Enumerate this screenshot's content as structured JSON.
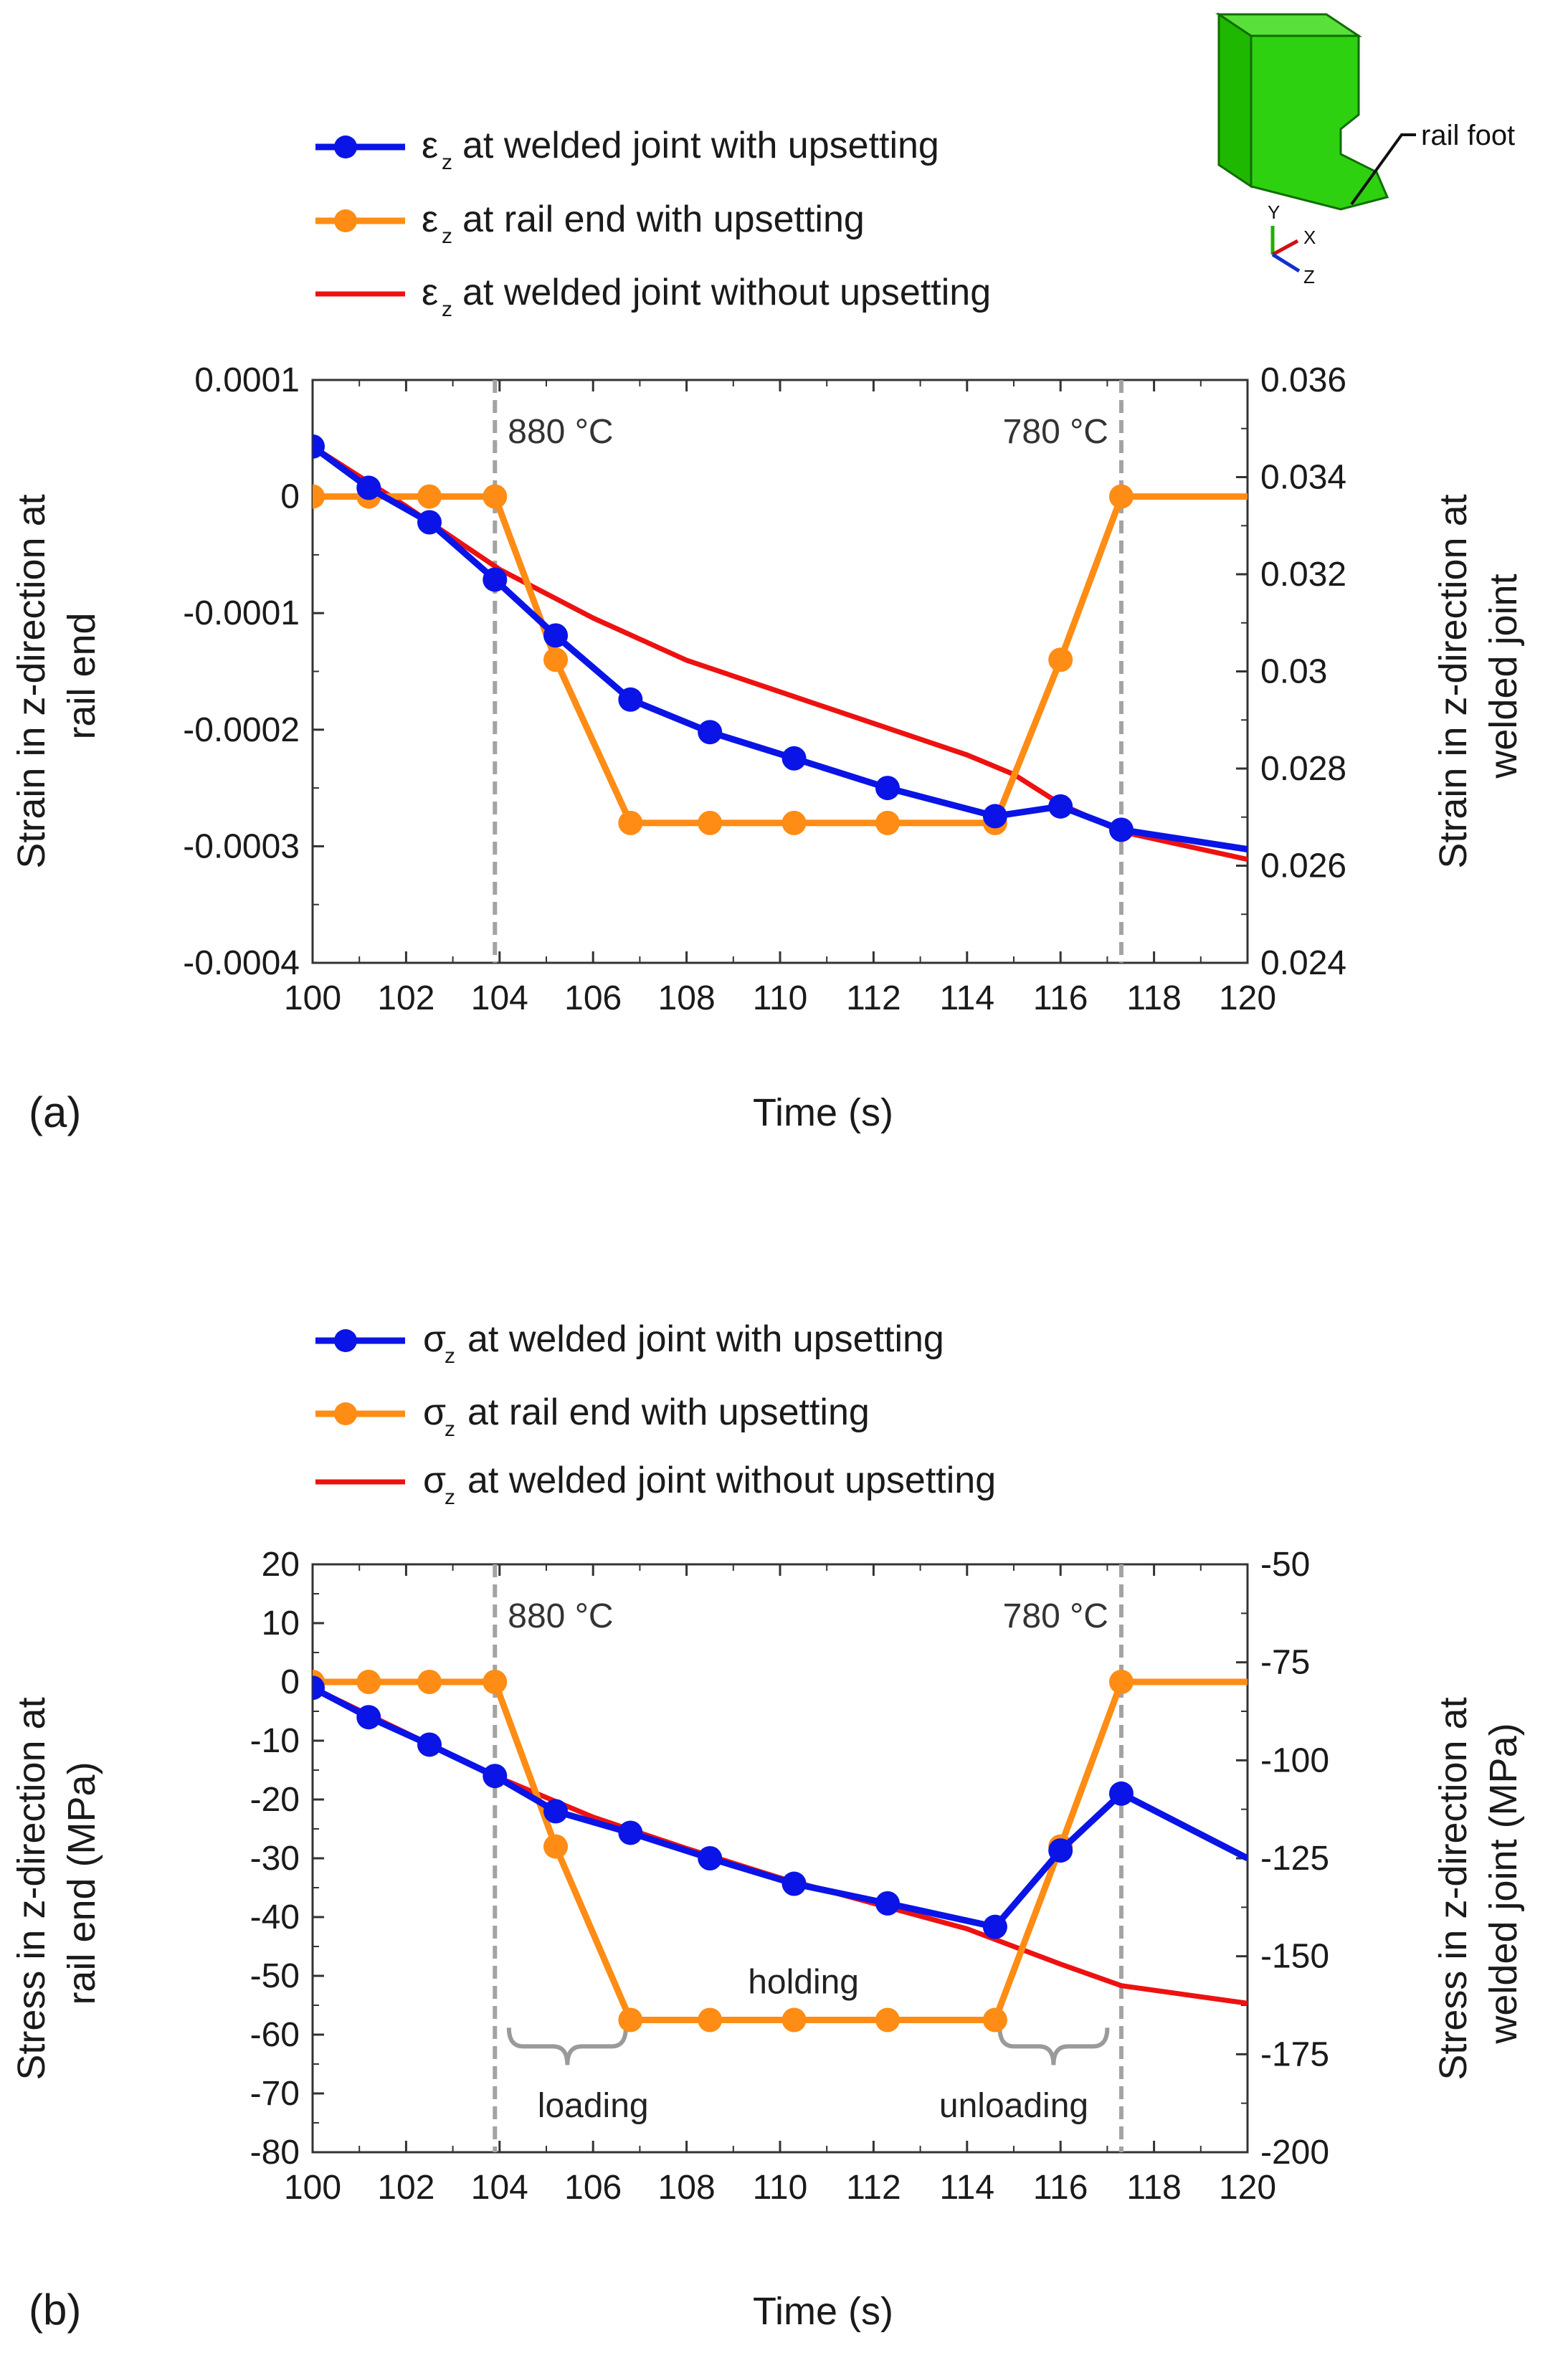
{
  "chart_data": [
    {
      "type": "line",
      "panel_label": "(a)",
      "xlabel": "Time (s)",
      "ylabel": [
        "Strain in z-direction at",
        "rail end"
      ],
      "y2label": [
        "Strain in z-direction at",
        "welded joint"
      ],
      "xlim": [
        100,
        120
      ],
      "ylim": [
        -0.0004,
        0.0001
      ],
      "y2lim": [
        0.024,
        0.036
      ],
      "x_ticks": [
        100,
        102,
        104,
        106,
        108,
        110,
        112,
        114,
        116,
        118,
        120
      ],
      "y_ticks": [
        0.0001,
        0,
        -0.0001,
        -0.0002,
        -0.0003,
        -0.0004
      ],
      "y_tick_labels": [
        "0.0001",
        "0",
        "-0.0001",
        "-0.0002",
        "-0.0003",
        "-0.0004"
      ],
      "y2_ticks": [
        0.036,
        0.034,
        0.032,
        0.03,
        0.028,
        0.026,
        0.024
      ],
      "y2_tick_labels": [
        "0.036",
        "0.034",
        "0.032",
        "0.03",
        "0.028",
        "0.026",
        "0.024"
      ],
      "vlines": [
        {
          "x": 103.9,
          "label": "880 °C",
          "label_anchor": "right"
        },
        {
          "x": 117.3,
          "label": "780 °C",
          "label_anchor": "left"
        }
      ],
      "grid": false,
      "legend": "top",
      "legend_entries": [
        {
          "symbol": "ε",
          "sub": "z",
          "text": "at welded joint with upsetting",
          "color": "#0a14e6",
          "marker": true
        },
        {
          "symbol": "ε",
          "sub": "z",
          "text": "at rail end with upsetting",
          "color": "#ff8c14",
          "marker": true
        },
        {
          "symbol": "ε",
          "sub": "z",
          "text": "at welded joint without upsetting",
          "color": "#ee1111",
          "marker": false
        }
      ],
      "series": [
        {
          "color": "#0a14e6",
          "axis": "right",
          "markers": true,
          "x": [
            100.0,
            101.2,
            102.5,
            103.9,
            105.2,
            106.8,
            108.5,
            110.3,
            112.3,
            114.6,
            116.0,
            117.3,
            120.0
          ],
          "y": [
            0.03463,
            0.03378,
            0.03307,
            0.03189,
            0.03074,
            0.02942,
            0.02875,
            0.02821,
            0.0276,
            0.02702,
            0.02722,
            0.02674,
            0.02634
          ]
        },
        {
          "color": "#ff8c14",
          "axis": "left",
          "markers": true,
          "x": [
            100.0,
            101.2,
            102.5,
            103.9,
            105.2,
            106.8,
            108.5,
            110.3,
            112.3,
            114.6,
            116.0,
            117.3,
            120.0
          ],
          "y": [
            0,
            0,
            0,
            0,
            -0.00014,
            -0.00028,
            -0.00028,
            -0.00028,
            -0.00028,
            -0.00028,
            -0.00014,
            0,
            0
          ],
          "marker_mask": [
            1,
            1,
            1,
            1,
            1,
            1,
            1,
            1,
            1,
            1,
            1,
            1,
            0
          ]
        },
        {
          "color": "#ee1111",
          "axis": "right",
          "markers": false,
          "x": [
            100.0,
            102.0,
            104.0,
            106.0,
            108.0,
            110.0,
            112.0,
            114.0,
            115.0,
            116.0,
            117.3,
            120.0
          ],
          "y": [
            0.03463,
            0.0334,
            0.0321,
            0.0311,
            0.03023,
            0.02958,
            0.02893,
            0.02828,
            0.02788,
            0.02727,
            0.0267,
            0.02613
          ]
        }
      ],
      "inset": {
        "label": "rail foot",
        "axes": [
          "Y",
          "X",
          "Z"
        ]
      }
    },
    {
      "type": "line",
      "panel_label": "(b)",
      "xlabel": "Time (s)",
      "ylabel": [
        "Stress in z-direction at",
        "rail end (MPa)"
      ],
      "y2label": [
        "Stress in z-direction at",
        "welded joint (MPa)"
      ],
      "xlim": [
        100,
        120
      ],
      "ylim": [
        -80,
        20
      ],
      "y2lim": [
        -200,
        -50
      ],
      "x_ticks": [
        100,
        102,
        104,
        106,
        108,
        110,
        112,
        114,
        116,
        118,
        120
      ],
      "y_ticks": [
        20,
        10,
        0,
        -10,
        -20,
        -30,
        -40,
        -50,
        -60,
        -70,
        -80
      ],
      "y_tick_labels": [
        "20",
        "10",
        "0",
        "-10",
        "-20",
        "-30",
        "-40",
        "-50",
        "-60",
        "-70",
        "-80"
      ],
      "y2_ticks": [
        -50,
        -75,
        -100,
        -125,
        -150,
        -175,
        -200
      ],
      "y2_tick_labels": [
        "-50",
        "-75",
        "-100",
        "-125",
        "-150",
        "-175",
        "-200"
      ],
      "vlines": [
        {
          "x": 103.9,
          "label": "880 °C",
          "label_anchor": "right"
        },
        {
          "x": 117.3,
          "label": "780 °C",
          "label_anchor": "left"
        }
      ],
      "grid": false,
      "legend": "top",
      "legend_entries": [
        {
          "symbol": "σ",
          "sub": "z",
          "text": "at welded joint with upsetting",
          "color": "#0a14e6",
          "marker": true
        },
        {
          "symbol": "σ",
          "sub": "z",
          "text": "at rail end with upsetting",
          "color": "#ff8c14",
          "marker": true
        },
        {
          "symbol": "σ",
          "sub": "z",
          "text": "at welded joint without upsetting",
          "color": "#ee1111",
          "marker": false
        }
      ],
      "annotations": [
        {
          "text": "holding",
          "x": 110.5,
          "y": -53
        },
        {
          "text": "loading",
          "x": 106.0,
          "y": -74
        },
        {
          "text": "unloading",
          "x": 115.0,
          "y": -74
        }
      ],
      "braces": [
        {
          "x0": 104.2,
          "x1": 106.7,
          "y": -62
        },
        {
          "x0": 114.7,
          "x1": 117.0,
          "y": -62
        }
      ],
      "series": [
        {
          "color": "#0a14e6",
          "axis": "right",
          "markers": true,
          "x": [
            100.0,
            101.2,
            102.5,
            103.9,
            105.2,
            106.8,
            108.5,
            110.3,
            112.3,
            114.6,
            116.0,
            117.3,
            120.0
          ],
          "y": [
            -81.5,
            -89,
            -96,
            -104,
            -113,
            -118.5,
            -125,
            -131.5,
            -136.5,
            -142.5,
            -123,
            -108.5,
            -125
          ]
        },
        {
          "color": "#ff8c14",
          "axis": "left",
          "markers": true,
          "x": [
            100.0,
            101.2,
            102.5,
            103.9,
            105.2,
            106.8,
            108.5,
            110.3,
            112.3,
            114.6,
            116.0,
            117.3,
            120.0
          ],
          "y": [
            0,
            0,
            0,
            0,
            -28,
            -57.5,
            -57.5,
            -57.5,
            -57.5,
            -57.5,
            -28,
            0,
            0
          ],
          "marker_mask": [
            1,
            1,
            1,
            1,
            1,
            1,
            1,
            1,
            1,
            1,
            1,
            1,
            0
          ]
        },
        {
          "color": "#ee1111",
          "axis": "right",
          "markers": false,
          "x": [
            100.0,
            102.0,
            104.0,
            106.0,
            108.0,
            110.0,
            112.0,
            114.0,
            116.0,
            117.3,
            120.0
          ],
          "y": [
            -81.5,
            -93,
            -104.5,
            -114.5,
            -122.5,
            -130,
            -136.5,
            -143,
            -152,
            -157.5,
            -162
          ]
        }
      ]
    }
  ]
}
